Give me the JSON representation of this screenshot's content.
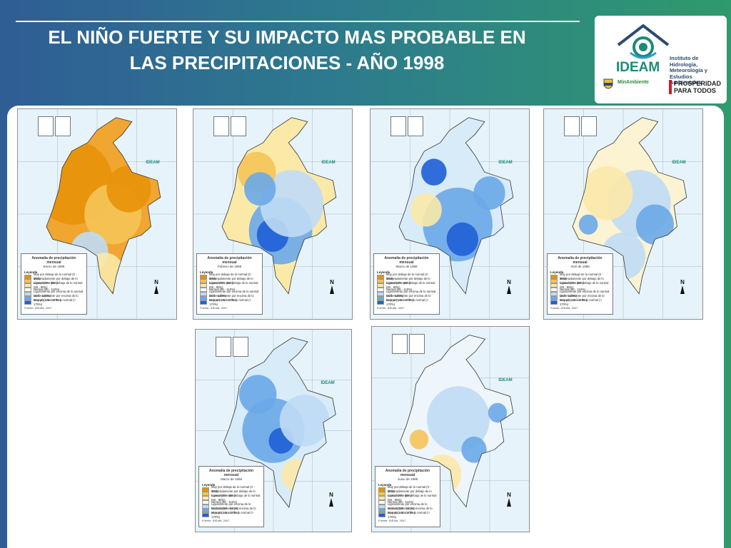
{
  "header": {
    "title_line1": "EL NIÑO FUERTE Y SU IMPACTO MAS PROBABLE EN",
    "title_line2": "LAS PRECIPITACIONES - AÑO 1998"
  },
  "logos": {
    "ideam": "IDEAM",
    "ideam_subtitle_1": "Instituto de Hidrología,",
    "ideam_subtitle_2": "Meteorología y",
    "ideam_subtitle_3": "Estudios Ambientales",
    "ministerio": "MinAmbiente",
    "prosperidad_1": "PROSPERIDAD",
    "prosperidad_2": "PARA TODOS"
  },
  "legend_common": {
    "title": "Anomalía de precipitación mensual",
    "heading": "Leyenda",
    "source": "Fuente: IDEAM, 2007",
    "north": "N",
    "map_logo": "IDEAM",
    "classes": [
      {
        "label": "Muy por debajo de lo normal (0 - 30%)",
        "color": "#e8920a"
      },
      {
        "label": "Moderadamente por debajo de lo normal (30 - 60%)",
        "color": "#f5c458"
      },
      {
        "label": "Ligeramente por debajo de lo normal (60 - 90%)",
        "color": "#fbe9a8"
      },
      {
        "label": "Normal (90 - 110%)",
        "color": "#ffffff"
      },
      {
        "label": "Ligeramente por encima de lo normal (110 - 140%)",
        "color": "#bfdcf5"
      },
      {
        "label": "Moderadamente por encima de lo normal (140 - 170%)",
        "color": "#6aa8e8"
      },
      {
        "label": "Muy por encima de lo normal (> 170%)",
        "color": "#1f5fd6"
      }
    ]
  },
  "maps": [
    {
      "month": "Enero de 1998"
    },
    {
      "month": "Febrero de 1998"
    },
    {
      "month": "Marzo de 1998"
    },
    {
      "month": "Abril de 1998"
    },
    {
      "month": "Marzo de 1998"
    },
    {
      "month": "Junio de 1998"
    }
  ]
}
